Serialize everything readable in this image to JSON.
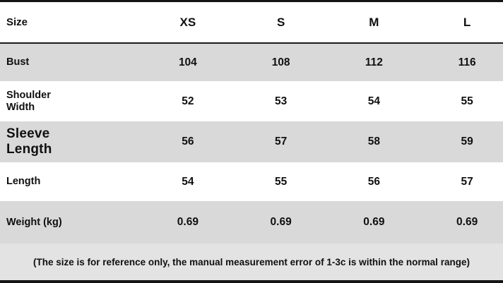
{
  "table": {
    "header": {
      "label": "Size",
      "columns": [
        "XS",
        "S",
        "M",
        "L"
      ]
    },
    "rows": [
      {
        "label": "Bust",
        "values": [
          "104",
          "108",
          "112",
          "116"
        ]
      },
      {
        "label": "Shoulder Width",
        "values": [
          "52",
          "53",
          "54",
          "55"
        ]
      },
      {
        "label": "Sleeve Length",
        "values": [
          "56",
          "57",
          "58",
          "59"
        ]
      },
      {
        "label": "Length",
        "values": [
          "54",
          "55",
          "56",
          "57"
        ]
      },
      {
        "label": "Weight (kg)",
        "values": [
          "0.69",
          "0.69",
          "0.69",
          "0.69"
        ]
      }
    ],
    "note": "(The size is for reference only, the manual measurement error of 1-3c is within the normal range)"
  },
  "colors": {
    "row_gray": "#d9d9d9",
    "row_white": "#ffffff",
    "note_background": "#e3e3e3",
    "text": "#101010",
    "border": "#141414"
  }
}
